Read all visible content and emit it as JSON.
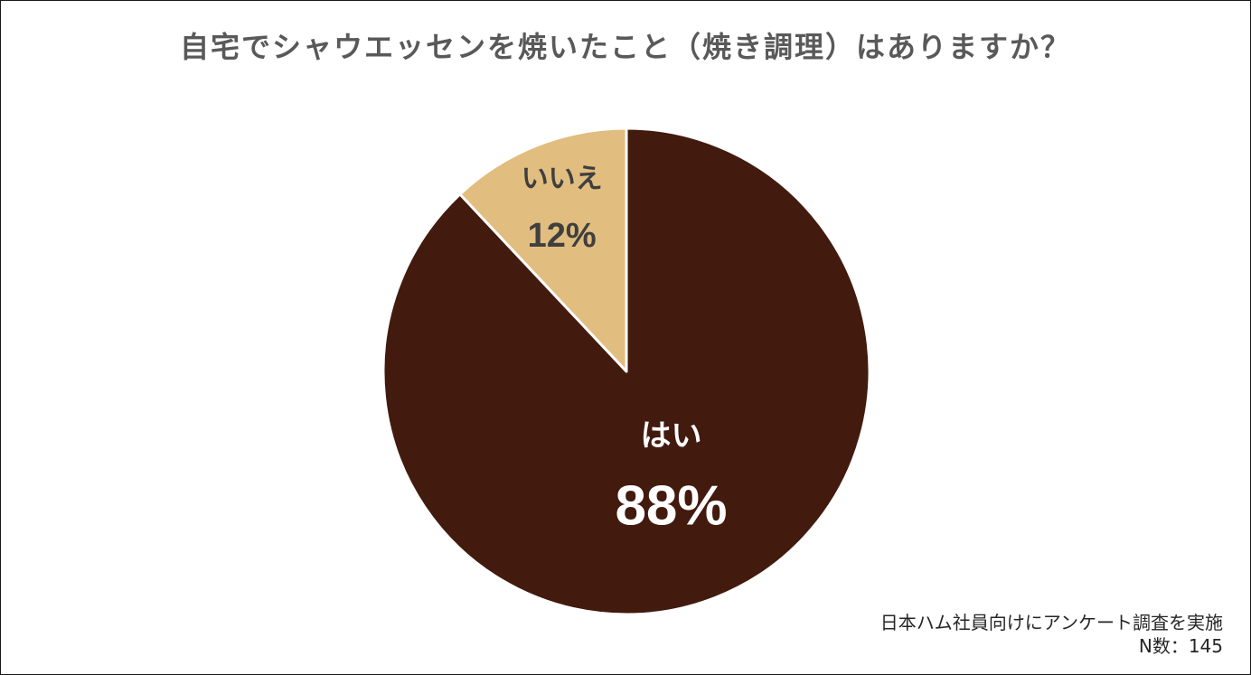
{
  "chart_data": {
    "type": "pie",
    "title": "自宅でシャウエッセンを焼いたこと（焼き調理）はありますか？",
    "slices": [
      {
        "label": "はい",
        "value": 88,
        "value_label": "88%",
        "color": "#421a0e",
        "text_color": "#ffffff"
      },
      {
        "label": "いいえ",
        "value": 12,
        "value_label": "12%",
        "color": "#e1bd7f",
        "text_color": "#3f3f3f"
      }
    ],
    "unit": "%",
    "start_angle": "12 o'clock",
    "direction": "clockwise",
    "legend": "none"
  },
  "notes": {
    "survey": "日本ハム社員向けにアンケート調査を実施",
    "sample_size": "N数：145"
  }
}
